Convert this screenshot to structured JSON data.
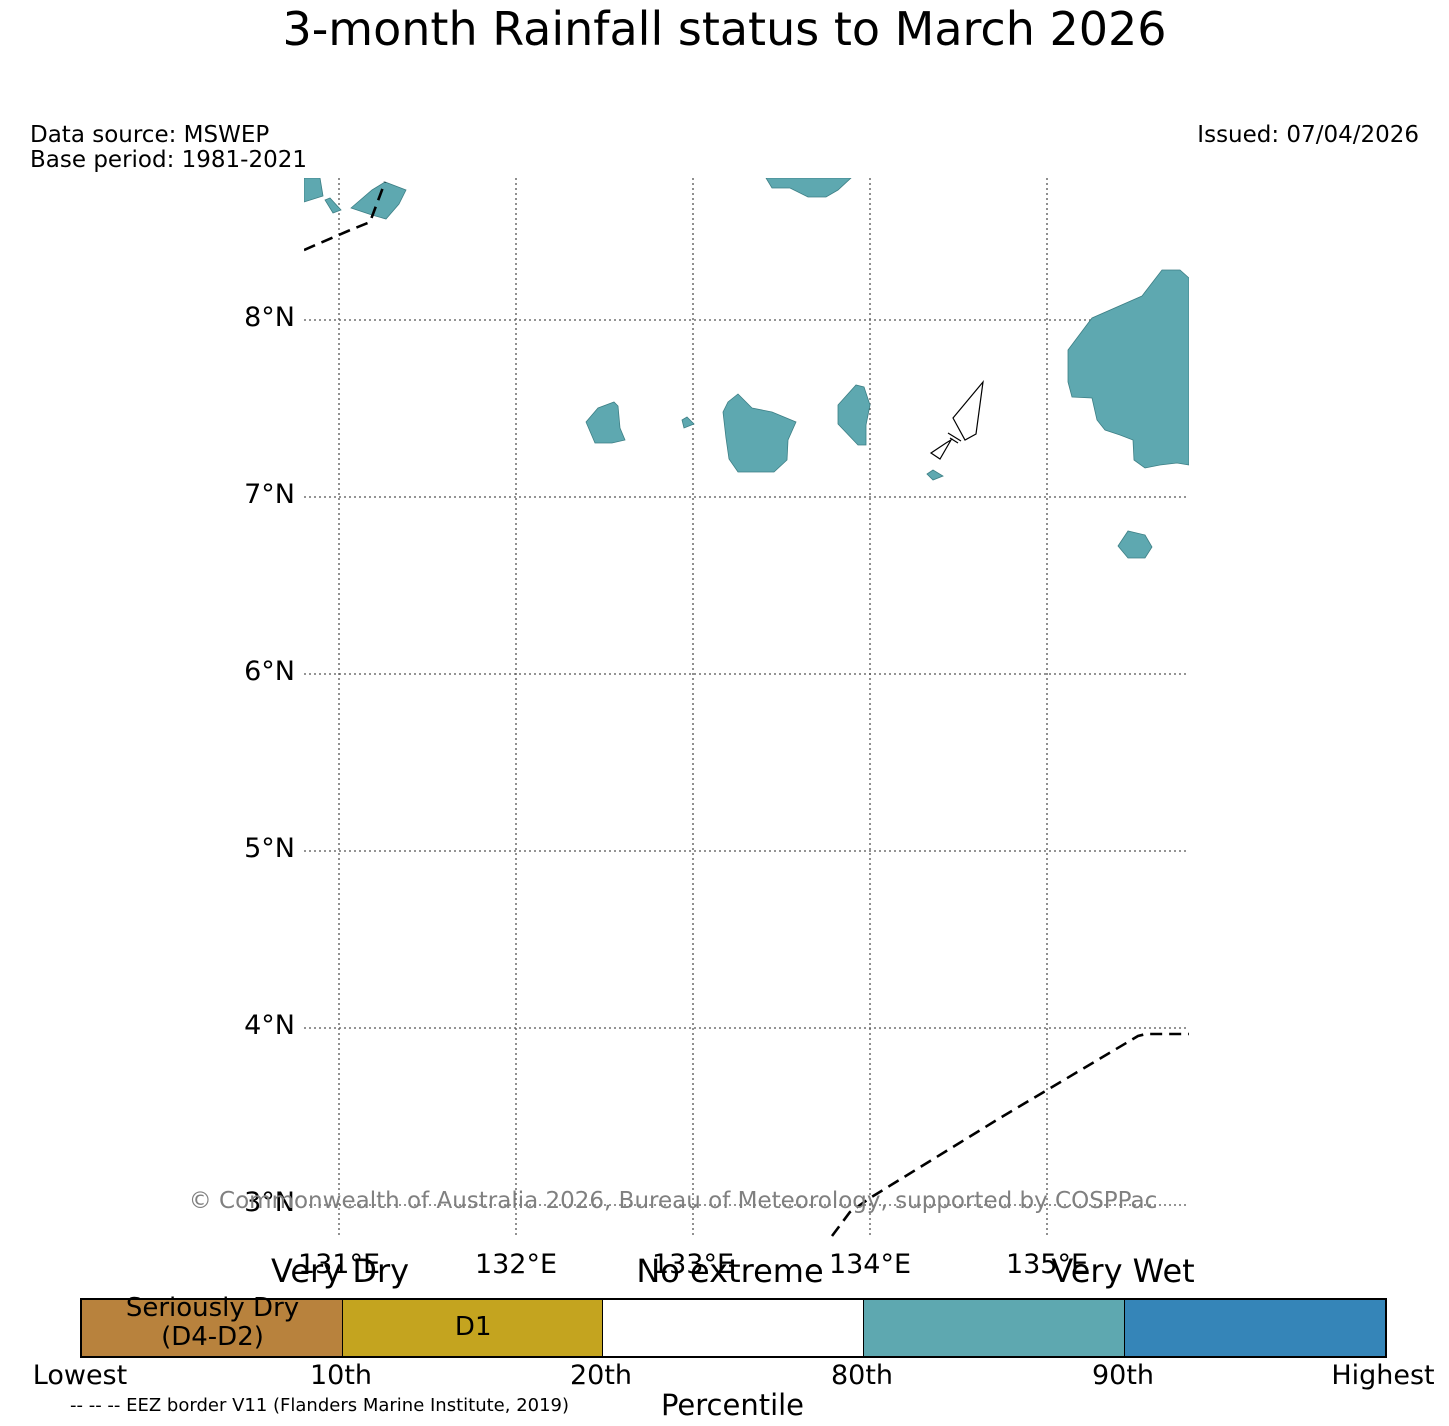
{
  "title": "3-month Rainfall status to March 2026",
  "data_source": "Data source: MSWEP",
  "base_period": "Base period: 1981-2021",
  "issued": "Issued: 07/04/2026",
  "map": {
    "lat_labels": [
      "8°N",
      "7°N",
      "6°N",
      "5°N",
      "4°N",
      "3°N"
    ],
    "lon_labels": [
      "131°E",
      "132°E",
      "133°E",
      "134°E",
      "135°E"
    ],
    "copyright": "© Commonwealth of Australia 2026, Bureau of Meteorology, supported by COSPPac",
    "very_wet_fill_color": "#5ea8b0",
    "eez_line_style": "dashed"
  },
  "legend": {
    "categories": {
      "very_dry": "Very Dry",
      "no_extreme": "No extreme",
      "very_wet": "Very Wet"
    },
    "bands": [
      {
        "label_line1": "Seriously Dry",
        "label_line2": "(D4-D2)",
        "color": "#b8823d"
      },
      {
        "label_line1": "D1",
        "label_line2": "",
        "color": "#c4a41f"
      },
      {
        "label_line1": "",
        "label_line2": "",
        "color": "#ffffff"
      },
      {
        "label_line1": "",
        "label_line2": "",
        "color": "#5ea8b0"
      },
      {
        "label_line1": "",
        "label_line2": "",
        "color": "#3585b8"
      }
    ],
    "ticks": [
      "Lowest",
      "10th",
      "20th",
      "80th",
      "90th",
      "Highest"
    ],
    "axis_label": "Percentile",
    "eez_note": "-- -- -- EEZ border V11 (Flanders Marine Institute, 2019)"
  }
}
